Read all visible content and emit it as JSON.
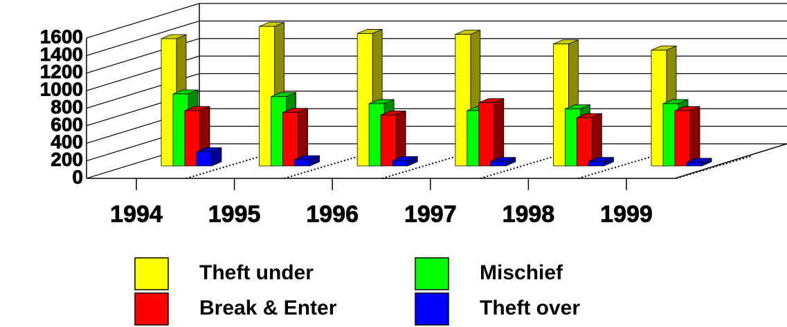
{
  "chart_data": {
    "type": "bar3d",
    "categories": [
      "1994",
      "1995",
      "1996",
      "1997",
      "1998",
      "1999"
    ],
    "series": [
      {
        "name": "Theft under",
        "color": "#ffff00",
        "values": [
          1450,
          1590,
          1510,
          1500,
          1390,
          1320
        ]
      },
      {
        "name": "Mischief",
        "color": "#00ff00",
        "values": [
          820,
          790,
          710,
          630,
          650,
          710
        ]
      },
      {
        "name": "Break & Enter",
        "color": "#ff0000",
        "values": [
          630,
          610,
          580,
          720,
          550,
          630
        ]
      },
      {
        "name": "Theft over",
        "color": "#0000ff",
        "values": [
          160,
          70,
          60,
          50,
          50,
          40
        ]
      }
    ],
    "ylim": [
      0,
      1600
    ],
    "yticks": [
      0,
      200,
      400,
      600,
      800,
      1000,
      1200,
      1400,
      1600
    ],
    "grid": true
  }
}
